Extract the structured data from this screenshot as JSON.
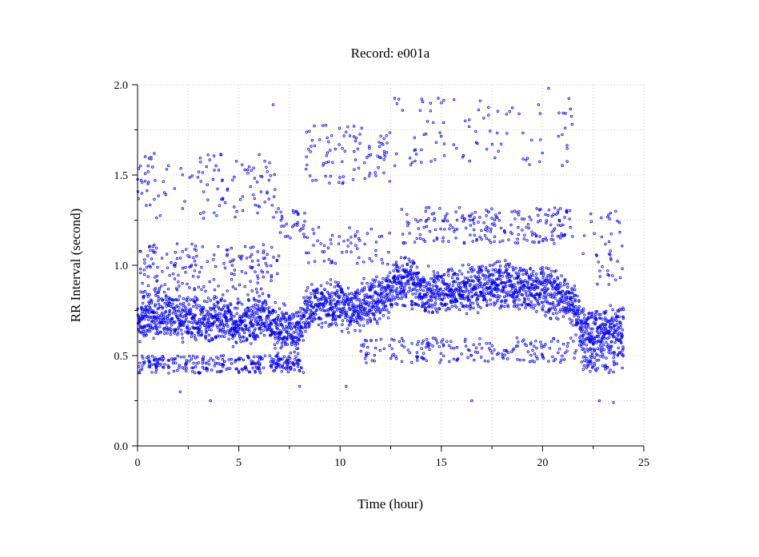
{
  "chart_data": {
    "type": "scatter",
    "title": "Record:  e001a",
    "xlabel": "Time (hour)",
    "ylabel": "RR Interval (second)",
    "xlim": [
      0,
      25
    ],
    "ylim": [
      0.0,
      2.0
    ],
    "x_ticks": [
      "0",
      "5",
      "10",
      "15",
      "20",
      "25"
    ],
    "y_ticks": [
      "0.0",
      "0.5",
      "1.0",
      "1.5",
      "2.0"
    ],
    "grid": true,
    "marker_color": "#0000ff",
    "series": [
      {
        "x_range": [
          0,
          24
        ],
        "trend": [
          [
            0.0,
            0.68
          ],
          [
            0.5,
            0.7
          ],
          [
            1.0,
            0.74
          ],
          [
            1.5,
            0.73
          ],
          [
            2.0,
            0.72
          ],
          [
            2.5,
            0.71
          ],
          [
            3.0,
            0.7
          ],
          [
            3.5,
            0.69
          ],
          [
            4.0,
            0.7
          ],
          [
            4.5,
            0.69
          ],
          [
            5.0,
            0.69
          ],
          [
            5.5,
            0.7
          ],
          [
            6.0,
            0.71
          ],
          [
            6.5,
            0.72
          ],
          [
            6.8,
            0.66
          ],
          [
            7.5,
            0.64
          ],
          [
            8.0,
            0.63
          ],
          [
            8.3,
            0.75
          ],
          [
            9.0,
            0.78
          ],
          [
            9.5,
            0.79
          ],
          [
            10.0,
            0.78
          ],
          [
            10.5,
            0.77
          ],
          [
            11.0,
            0.78
          ],
          [
            11.5,
            0.79
          ],
          [
            12.0,
            0.8
          ],
          [
            12.5,
            0.86
          ],
          [
            13.0,
            0.92
          ],
          [
            13.5,
            0.9
          ],
          [
            14.0,
            0.87
          ],
          [
            14.5,
            0.85
          ],
          [
            15.0,
            0.84
          ],
          [
            15.5,
            0.85
          ],
          [
            16.0,
            0.86
          ],
          [
            16.5,
            0.87
          ],
          [
            17.0,
            0.88
          ],
          [
            17.5,
            0.88
          ],
          [
            18.0,
            0.89
          ],
          [
            18.5,
            0.89
          ],
          [
            19.0,
            0.88
          ],
          [
            19.5,
            0.87
          ],
          [
            20.0,
            0.86
          ],
          [
            20.5,
            0.84
          ],
          [
            21.0,
            0.82
          ],
          [
            21.5,
            0.78
          ],
          [
            22.0,
            0.65
          ],
          [
            22.5,
            0.63
          ],
          [
            23.0,
            0.63
          ],
          [
            23.5,
            0.64
          ],
          [
            24.0,
            0.65
          ]
        ],
        "band_halfwidth": 0.09,
        "outlier_clusters": [
          {
            "x_range": [
              0.0,
              7.0
            ],
            "y_range": [
              0.4,
              0.5
            ],
            "count": 220
          },
          {
            "x_range": [
              0.0,
              7.0
            ],
            "y_range": [
              0.85,
              1.12
            ],
            "count": 170
          },
          {
            "x_range": [
              0.0,
              7.0
            ],
            "y_range": [
              1.25,
              1.62
            ],
            "count": 120
          },
          {
            "x_range": [
              6.8,
              8.2
            ],
            "y_range": [
              0.4,
              0.5
            ],
            "count": 60
          },
          {
            "x_range": [
              7.0,
              8.3
            ],
            "y_range": [
              1.15,
              1.32
            ],
            "count": 30
          },
          {
            "x_range": [
              8.3,
              12.5
            ],
            "y_range": [
              1.45,
              1.78
            ],
            "count": 90
          },
          {
            "x_range": [
              8.3,
              12.5
            ],
            "y_range": [
              1.0,
              1.22
            ],
            "count": 60
          },
          {
            "x_range": [
              11.0,
              23.0
            ],
            "y_range": [
              0.46,
              0.6
            ],
            "count": 220
          },
          {
            "x_range": [
              13.0,
              21.5
            ],
            "y_range": [
              1.12,
              1.32
            ],
            "count": 210
          },
          {
            "x_range": [
              12.5,
              21.5
            ],
            "y_range": [
              1.55,
              1.93
            ],
            "count": 90
          },
          {
            "x_range": [
              22.0,
              24.0
            ],
            "y_range": [
              0.4,
              0.55
            ],
            "count": 60
          },
          {
            "x_range": [
              22.0,
              24.0
            ],
            "y_range": [
              0.85,
              1.3
            ],
            "count": 40
          }
        ],
        "isolated_points": [
          [
            6.7,
            1.89
          ],
          [
            12.9,
            1.92
          ],
          [
            20.3,
            1.98
          ],
          [
            8.0,
            0.33
          ],
          [
            2.1,
            0.3
          ],
          [
            3.6,
            0.25
          ],
          [
            16.5,
            0.25
          ],
          [
            22.8,
            0.25
          ],
          [
            23.5,
            0.24
          ],
          [
            10.3,
            0.33
          ]
        ]
      }
    ]
  }
}
